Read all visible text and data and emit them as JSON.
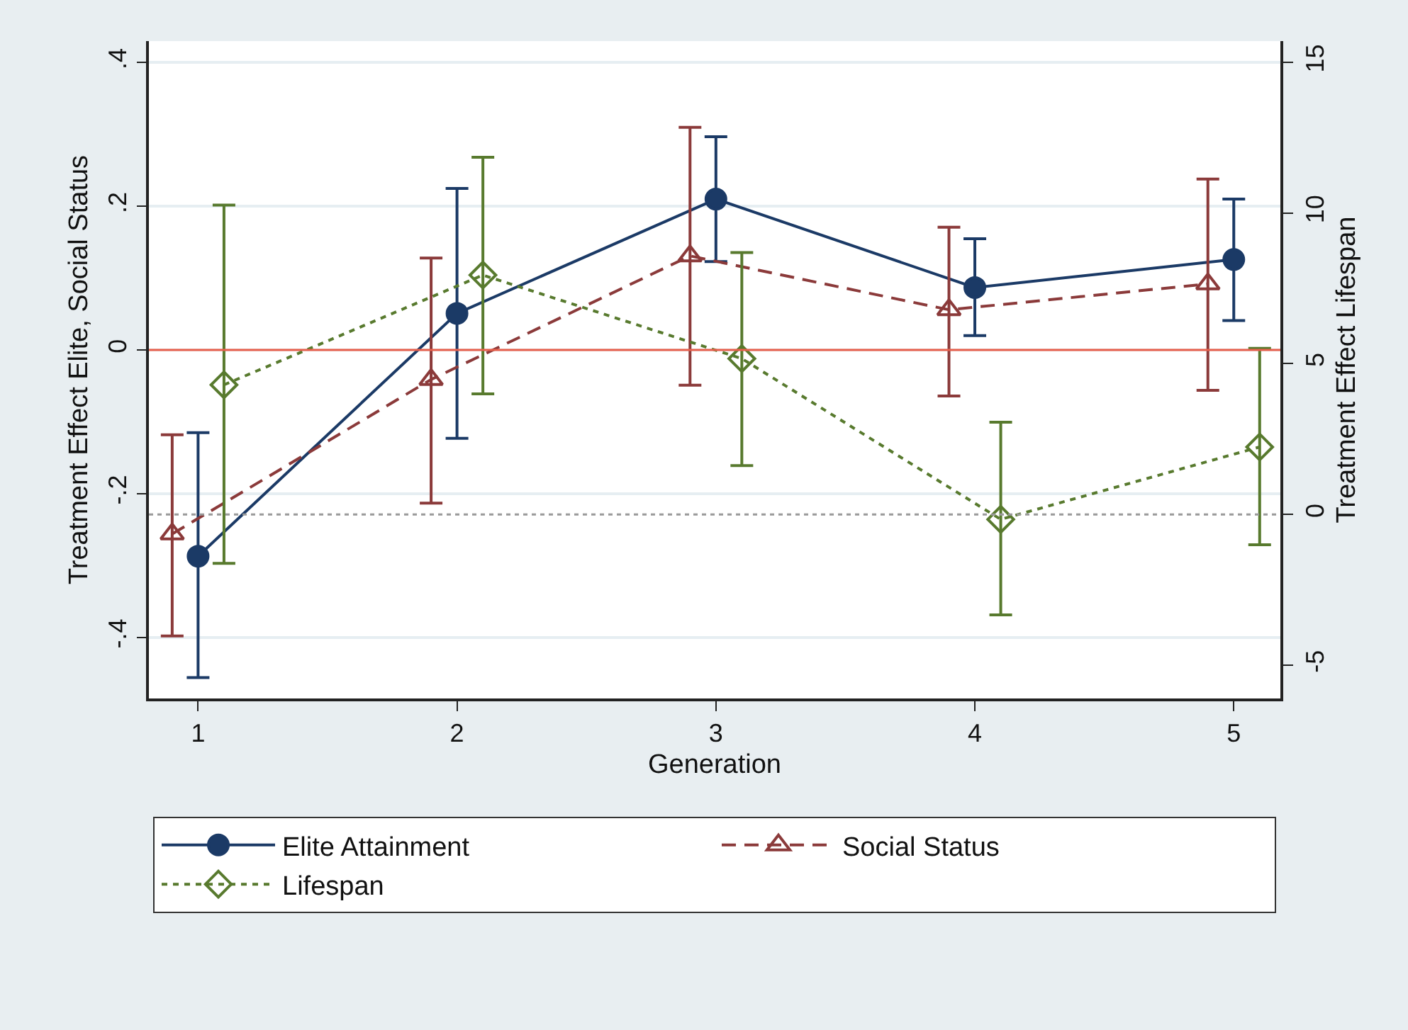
{
  "chart_data": {
    "type": "line",
    "xlabel": "Generation",
    "ylabel": "Treatment Effect Elite, Social Status",
    "y2label": "Treatment Effect Lifespan",
    "xlim": [
      0.81,
      5.18
    ],
    "xticks": [
      1,
      2,
      3,
      4,
      5
    ],
    "ylim": [
      -0.485,
      0.43
    ],
    "yticks": [
      {
        "value": -0.4,
        "label": "-.4"
      },
      {
        "value": -0.2,
        "label": "-.2"
      },
      0,
      {
        "value": 0.2,
        "label": ".2"
      },
      {
        "value": 0.4,
        "label": ".4"
      }
    ],
    "y2lim": [
      -6.1,
      15.7
    ],
    "y2ticks": [
      -5,
      0,
      5,
      10,
      15
    ],
    "grid": "y",
    "legend": "bottom",
    "ref_lines": [
      {
        "axis": "y",
        "value": 0,
        "color": "#e8604c",
        "line_style": "solid"
      },
      {
        "axis": "y2",
        "value": 0,
        "color": "#999999",
        "line_style": "dotted"
      }
    ],
    "series": [
      {
        "name": "Elite Attainment",
        "color": "#1b3a66",
        "marker": "circle",
        "line_style": "solid",
        "x": [
          1,
          2,
          3,
          4,
          5
        ],
        "values": [
          -0.287,
          0.051,
          0.21,
          0.087,
          0.126
        ],
        "errors": [
          [
            -0.456,
            -0.115
          ],
          [
            -0.123,
            0.225
          ],
          [
            0.123,
            0.297
          ],
          [
            0.02,
            0.155
          ],
          [
            0.041,
            0.21
          ]
        ]
      },
      {
        "name": "Social Status",
        "color": "#8b3a3a",
        "marker": "triangle",
        "line_style": "dashed",
        "x": [
          0.9,
          1.9,
          2.9,
          3.9,
          4.9
        ],
        "values": [
          -0.256,
          -0.041,
          0.131,
          0.056,
          0.092
        ],
        "errors": [
          [
            -0.398,
            -0.118
          ],
          [
            -0.213,
            0.128
          ],
          [
            -0.049,
            0.31
          ],
          [
            -0.064,
            0.171
          ],
          [
            -0.056,
            0.238
          ]
        ]
      },
      {
        "name": "Lifespan",
        "color": "#587a2e",
        "marker": "diamond",
        "line_style": "dotted",
        "axis": "y2",
        "x": [
          1.1,
          2.1,
          3.1,
          4.1,
          5.1
        ],
        "values": [
          4.3,
          7.94,
          5.17,
          -0.16,
          2.24
        ],
        "errors": [
          [
            -1.62,
            10.26
          ],
          [
            4.0,
            11.85
          ],
          [
            1.62,
            8.69
          ],
          [
            -3.33,
            3.06
          ],
          [
            -1.0,
            5.51
          ]
        ]
      }
    ]
  }
}
